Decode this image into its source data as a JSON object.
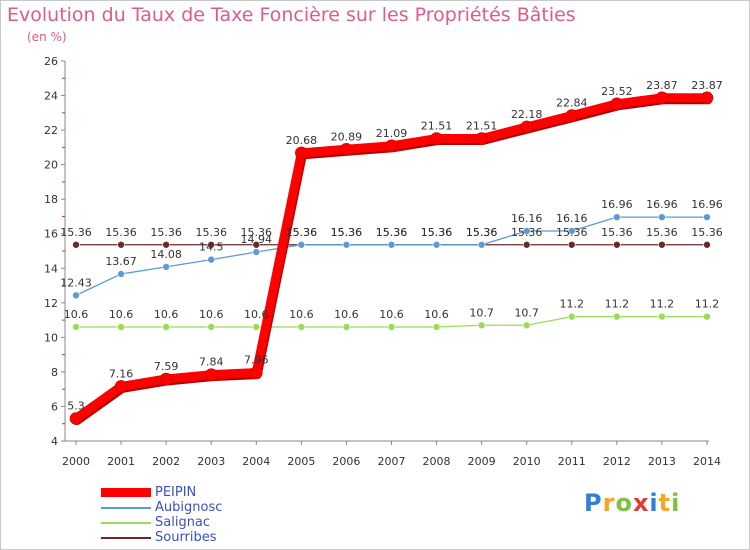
{
  "chart_data": {
    "type": "line",
    "title": "Evolution du Taux de Taxe Foncière sur les Propriétés Bâties",
    "unit_label": "(en %)",
    "xlabel": "",
    "ylabel": "",
    "ylim": [
      4,
      26
    ],
    "yticks": [
      "4",
      "6",
      "8",
      "10",
      "12",
      "14",
      "16",
      "18",
      "20",
      "22",
      "24",
      "26"
    ],
    "categories": [
      "2000",
      "2001",
      "2002",
      "2003",
      "2004",
      "2005",
      "2006",
      "2007",
      "2008",
      "2009",
      "2010",
      "2011",
      "2012",
      "2013",
      "2014"
    ],
    "series": [
      {
        "name": "Sourribes",
        "color": "#6b2a2a",
        "values": [
          15.36,
          15.36,
          15.36,
          15.36,
          15.36,
          15.36,
          15.36,
          15.36,
          15.36,
          15.36,
          15.36,
          15.36,
          15.36,
          15.36,
          15.36
        ]
      },
      {
        "name": "Salignac",
        "color": "#99dd55",
        "values": [
          10.6,
          10.6,
          10.6,
          10.6,
          10.6,
          10.6,
          10.6,
          10.6,
          10.6,
          10.7,
          10.7,
          11.2,
          11.2,
          11.2,
          11.2
        ]
      },
      {
        "name": "Aubignosc",
        "color": "#5a9bd5",
        "values": [
          12.43,
          13.67,
          14.08,
          14.5,
          14.94,
          15.36,
          15.36,
          15.36,
          15.36,
          15.36,
          16.16,
          16.16,
          16.96,
          16.96,
          16.96
        ]
      },
      {
        "name": "PEIPIN",
        "color": "#ff0000",
        "values": [
          5.3,
          7.16,
          7.59,
          7.84,
          7.96,
          20.68,
          20.89,
          21.09,
          21.51,
          21.51,
          22.18,
          22.84,
          23.52,
          23.87,
          23.87
        ]
      }
    ],
    "data_labels": {
      "Sourribes": [
        "15.36",
        "15.36",
        "15.36",
        "15.36",
        "15.36",
        "15.36",
        "15.36",
        "15.36",
        "15.36",
        "15.36",
        "15.36",
        "15.36",
        "15.36",
        "15.36",
        "15.36"
      ],
      "Salignac": [
        "10.6",
        "10.6",
        "10.6",
        "10.6",
        "10.6",
        "10.6",
        "10.6",
        "10.6",
        "10.6",
        "10.7",
        "10.7",
        "11.2",
        "11.2",
        "11.2",
        "11.2"
      ],
      "Aubignosc": [
        "12.43",
        "13.67",
        "14.08",
        "14.5",
        "14.94",
        "15.36",
        "15.36",
        "15.36",
        "15.36",
        "15.36",
        "16.16",
        "16.16",
        "16.96",
        "16.96",
        "16.96"
      ],
      "PEIPIN": [
        "5.3",
        "7.16",
        "7.59",
        "7.84",
        "7.96",
        "20.68",
        "20.89",
        "21.09",
        "21.51",
        "21.51",
        "22.18",
        "22.84",
        "23.52",
        "23.87",
        "23.87"
      ]
    },
    "legend": {
      "placement": "bottom-left",
      "items": [
        {
          "name": "PEIPIN",
          "color": "#ff0000"
        },
        {
          "name": "Aubignosc",
          "color": "#5a9bd5"
        },
        {
          "name": "Salignac",
          "color": "#99dd55"
        },
        {
          "name": "Sourribes",
          "color": "#6b2a2a"
        }
      ]
    }
  },
  "logo": {
    "text": "Proxiti",
    "letter_colors": [
      "#2e7fd8",
      "#f5a623",
      "#7cc242",
      "#e03a3a",
      "#2e7fd8",
      "#f5a623",
      "#7cc242"
    ]
  }
}
